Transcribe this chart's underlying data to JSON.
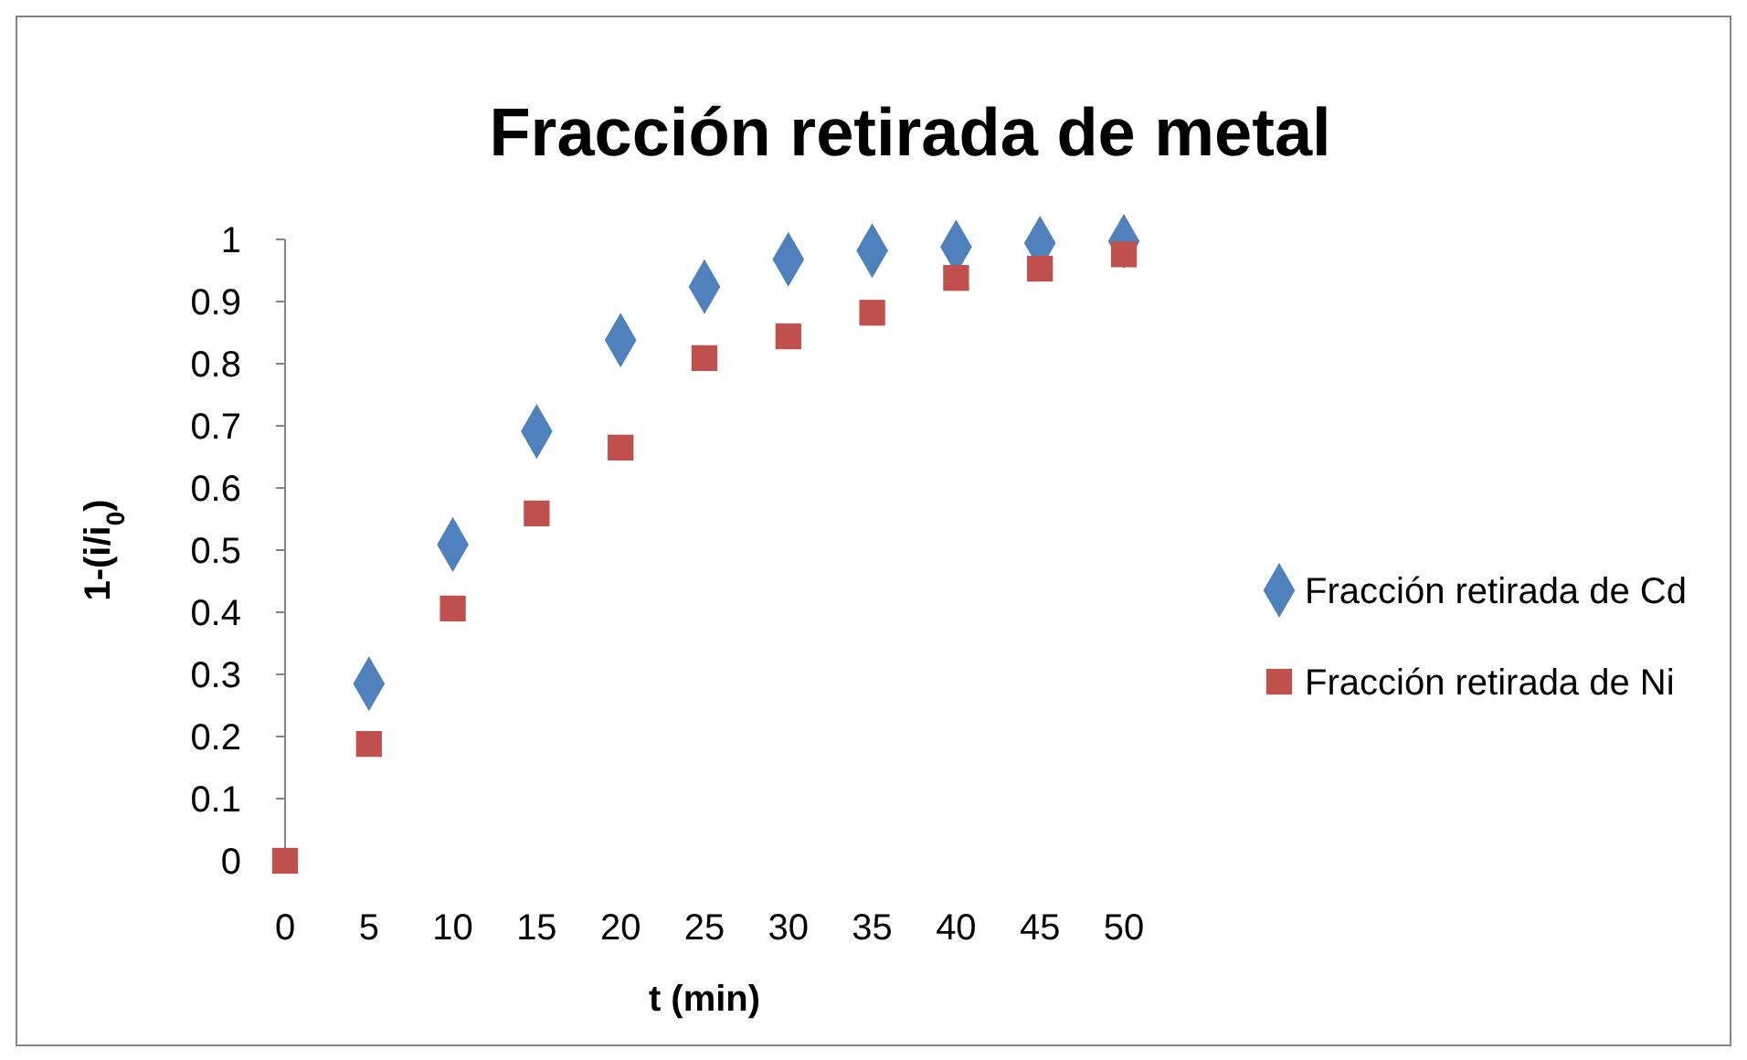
{
  "chart_data": {
    "type": "scatter",
    "title": "Fracción retirada de metal",
    "xlabel": "t (min)",
    "ylabel": "1-(i/i$_{0}$)",
    "x": [
      0,
      5,
      10,
      15,
      20,
      25,
      30,
      35,
      40,
      45,
      50
    ],
    "xlim": [
      0,
      50
    ],
    "xticks": [
      0,
      5,
      10,
      15,
      20,
      25,
      30,
      35,
      40,
      45,
      50
    ],
    "ylim": [
      0,
      1
    ],
    "yticks": [
      0,
      0.1,
      0.2,
      0.3,
      0.4,
      0.5,
      0.6,
      0.7,
      0.8,
      0.9,
      1
    ],
    "grid": false,
    "legend": "right",
    "series": [
      {
        "name": "Fracción  retirada de Cd",
        "color": "#4f81bd",
        "marker": "diamond",
        "values": [
          null,
          0.285,
          0.509,
          0.691,
          0.838,
          0.924,
          0.968,
          0.982,
          0.988,
          0.994,
          0.997
        ]
      },
      {
        "name": "Fracción retirada de Ni",
        "color": "#c0504d",
        "marker": "square",
        "values": [
          0,
          0.188,
          0.406,
          0.559,
          0.665,
          0.809,
          0.844,
          0.882,
          0.938,
          0.953,
          0.976
        ]
      }
    ]
  }
}
